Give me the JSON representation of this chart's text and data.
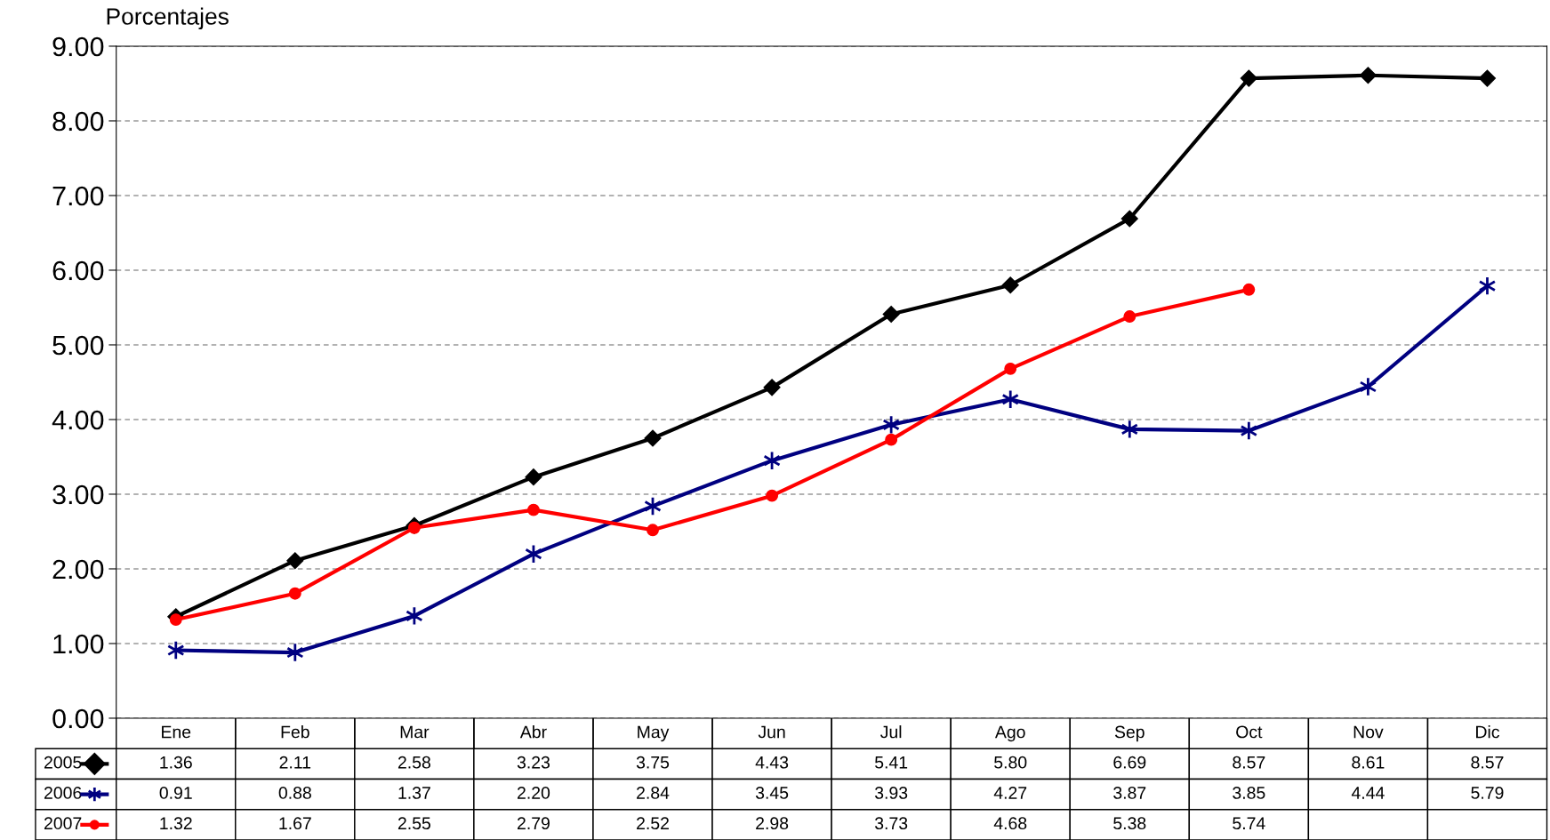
{
  "chart_data": {
    "type": "line",
    "ylabel": "Porcentajes",
    "categories": [
      "Ene",
      "Feb",
      "Mar",
      "Abr",
      "May",
      "Jun",
      "Jul",
      "Ago",
      "Sep",
      "Oct",
      "Nov",
      "Dic"
    ],
    "series": [
      {
        "name": "2005",
        "color": "#000000",
        "marker": "diamond",
        "values": [
          1.36,
          2.11,
          2.58,
          3.23,
          3.75,
          4.43,
          5.41,
          5.8,
          6.69,
          8.57,
          8.61,
          8.57
        ],
        "value_labels": [
          "1.36",
          "2.11",
          "2.58",
          "3.23",
          "3.75",
          "4.43",
          "5.41",
          "5.80",
          "6.69",
          "8.57",
          "8.61",
          "8.57"
        ]
      },
      {
        "name": "2006",
        "color": "#000080",
        "marker": "cross",
        "values": [
          0.91,
          0.88,
          1.37,
          2.2,
          2.84,
          3.45,
          3.93,
          4.27,
          3.87,
          3.85,
          4.44,
          5.79
        ],
        "value_labels": [
          "0.91",
          "0.88",
          "1.37",
          "2.20",
          "2.84",
          "3.45",
          "3.93",
          "4.27",
          "3.87",
          "3.85",
          "4.44",
          "5.79"
        ]
      },
      {
        "name": "2007",
        "color": "#ff0000",
        "marker": "circle",
        "values": [
          1.32,
          1.67,
          2.55,
          2.79,
          2.52,
          2.98,
          3.73,
          4.68,
          5.38,
          5.74,
          null,
          null
        ],
        "value_labels": [
          "1.32",
          "1.67",
          "2.55",
          "2.79",
          "2.52",
          "2.98",
          "3.73",
          "4.68",
          "5.38",
          "5.74",
          null,
          null
        ]
      }
    ],
    "ylim": [
      0,
      9
    ],
    "yticks": [
      {
        "value": 0,
        "label": "0.00"
      },
      {
        "value": 1,
        "label": "1.00"
      },
      {
        "value": 2,
        "label": "2.00"
      },
      {
        "value": 3,
        "label": "3.00"
      },
      {
        "value": 4,
        "label": "4.00"
      },
      {
        "value": 5,
        "label": "5.00"
      },
      {
        "value": 6,
        "label": "6.00"
      },
      {
        "value": 7,
        "label": "7.00"
      },
      {
        "value": 8,
        "label": "8.00"
      },
      {
        "value": 9,
        "label": "9.00"
      }
    ],
    "grid": "y",
    "line_style": "solid",
    "legend": "bottom"
  }
}
